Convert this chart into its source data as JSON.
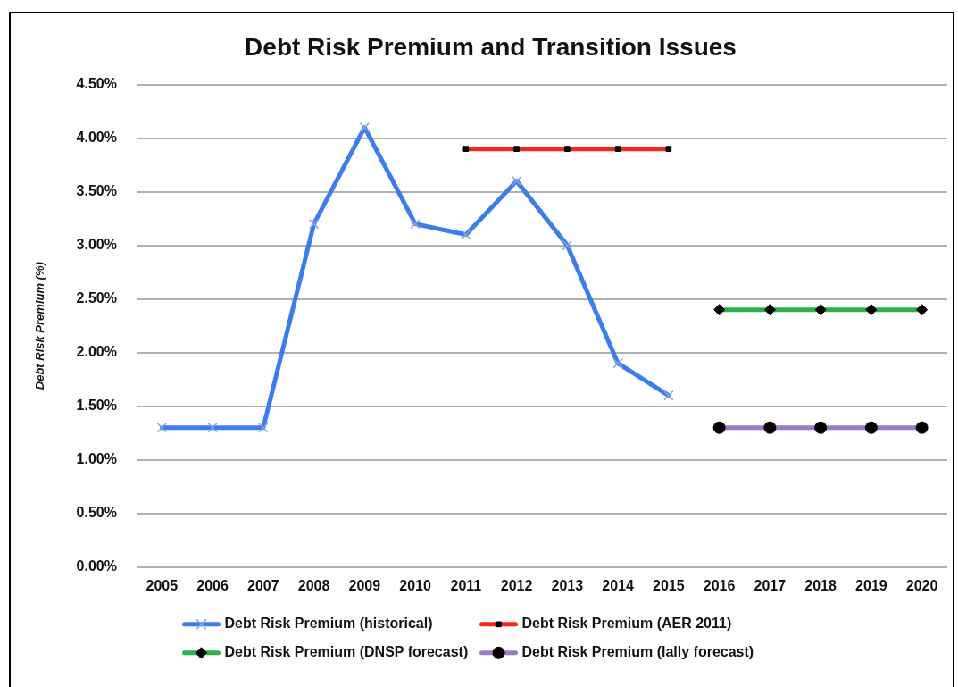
{
  "chart_data": {
    "type": "line",
    "title": "Debt Risk Premium and Transition Issues",
    "ylabel": "Debt Risk Premium (%)",
    "categories": [
      "2005",
      "2006",
      "2007",
      "2008",
      "2009",
      "2010",
      "2011",
      "2012",
      "2013",
      "2014",
      "2015",
      "2016",
      "2017",
      "2018",
      "2019",
      "2020"
    ],
    "series": [
      {
        "name": "Debt Risk Premium (historical)",
        "color": "#3b7ded",
        "marker": "cross",
        "values": [
          1.3,
          1.3,
          1.3,
          3.2,
          4.1,
          3.2,
          3.1,
          3.6,
          3.0,
          1.9,
          1.6,
          null,
          null,
          null,
          null,
          null
        ]
      },
      {
        "name": "Debt Risk Premium (AER 2011)",
        "color": "#f7261b",
        "marker": "square",
        "values": [
          null,
          null,
          null,
          null,
          null,
          null,
          3.9,
          3.9,
          3.9,
          3.9,
          3.9,
          null,
          null,
          null,
          null,
          null
        ]
      },
      {
        "name": "Debt Risk Premium (DNSP forecast)",
        "color": "#2eb04a",
        "marker": "diamond",
        "values": [
          null,
          null,
          null,
          null,
          null,
          null,
          null,
          null,
          null,
          null,
          null,
          2.4,
          2.4,
          2.4,
          2.4,
          2.4
        ]
      },
      {
        "name": "Debt Risk Premium (lally forecast)",
        "color": "#9a7cc4",
        "marker": "circle",
        "values": [
          null,
          null,
          null,
          null,
          null,
          null,
          null,
          null,
          null,
          null,
          null,
          1.3,
          1.3,
          1.3,
          1.3,
          1.3
        ]
      }
    ],
    "ylim": [
      0,
      4.5
    ],
    "yticks": [
      {
        "value": 0,
        "label": "0.00%"
      },
      {
        "value": 0.5,
        "label": "0.50%"
      },
      {
        "value": 1,
        "label": "1.00%"
      },
      {
        "value": 1.5,
        "label": "1.50%"
      },
      {
        "value": 2,
        "label": "2.00%"
      },
      {
        "value": 2.5,
        "label": "2.50%"
      },
      {
        "value": 3,
        "label": "3.00%"
      },
      {
        "value": 3.5,
        "label": "3.50%"
      },
      {
        "value": 4,
        "label": "4.00%"
      },
      {
        "value": 4.5,
        "label": "4.50%"
      }
    ],
    "grid": "y",
    "legend": "bottom",
    "line_style": "solid"
  }
}
